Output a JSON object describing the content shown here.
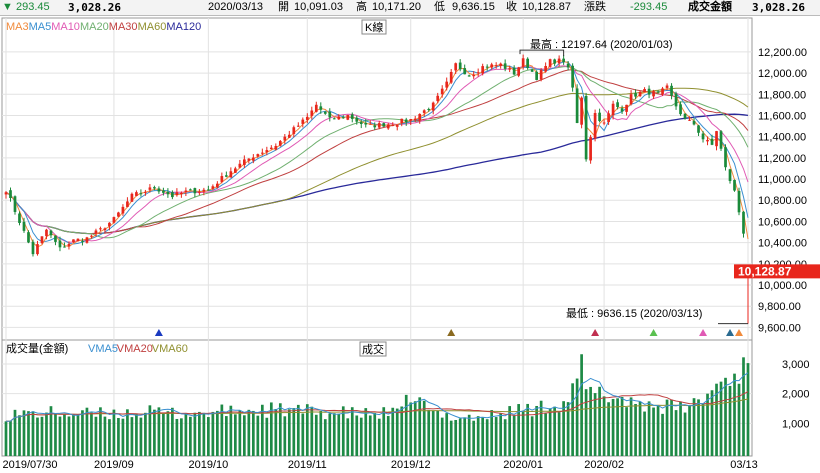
{
  "header": {
    "arrow": "▼",
    "change_left": "293.45",
    "value_left": "3,028.26",
    "date": "2020/03/13",
    "open_label": "開",
    "open_value": "10,091.03",
    "high_label": "高",
    "high_value": "10,171.20",
    "low_label": "低",
    "low_value": "9,636.15",
    "close_label": "收",
    "close_value": "10,128.87",
    "change_label": "漲跌",
    "change_value": "-293.45",
    "amount_label": "成交金額",
    "amount_value": "3,028.26"
  },
  "colors": {
    "up": "#e8261c",
    "down": "#1a8a3a",
    "volume_bar": "#1e8a46",
    "MA3": "#f08a3c",
    "MA5": "#3a8fd0",
    "MA10": "#e05ab4",
    "MA20": "#70b070",
    "MA30": "#c04040",
    "MA60": "#909030",
    "MA120": "#2a2a9a",
    "VMA5": "#3a8fd0",
    "VMA20": "#c04040",
    "VMA60": "#909030"
  },
  "chart_data": [
    {
      "type": "candlestick",
      "title": "K線",
      "legend": [
        "MA3",
        "MA5",
        "MA10",
        "MA20",
        "MA30",
        "MA60",
        "MA120"
      ],
      "ylim": [
        9500,
        12350
      ],
      "y_ticks": [
        9600,
        9800,
        10000,
        10200,
        10400,
        10600,
        10800,
        11000,
        11200,
        11400,
        11600,
        11800,
        12000,
        12200
      ],
      "y_tick_labels": [
        "9,600.00",
        "9,800.00",
        "10,000.00",
        "10,200.00",
        "10,400.00",
        "10,600.00",
        "10,800.00",
        "11,000.00",
        "11,200.00",
        "11,400.00",
        "11,600.00",
        "11,800.00",
        "12,000.00",
        "12,200.00"
      ],
      "x_tick_labels": [
        "2019/07/30",
        "2019/09",
        "2019/10",
        "2019/11",
        "2019/12",
        "2020/01",
        "2020/02",
        "03/13"
      ],
      "x_tick_index": [
        0,
        24,
        45,
        67,
        90,
        115,
        133,
        165
      ],
      "last_close": 10128.87,
      "last_close_label": "10,128.87",
      "annotations": [
        {
          "text": "最高 : 12197.64 (2020/01/03)",
          "value": 12197.64
        },
        {
          "text": "最低 : 9636.15 (2020/03/13)",
          "value": 9636.15
        }
      ],
      "anchors": [
        [
          0,
          10900
        ],
        [
          3,
          10600
        ],
        [
          6,
          10300
        ],
        [
          9,
          10520
        ],
        [
          12,
          10340
        ],
        [
          15,
          10420
        ],
        [
          18,
          10440
        ],
        [
          21,
          10520
        ],
        [
          24,
          10620
        ],
        [
          28,
          10840
        ],
        [
          33,
          10920
        ],
        [
          37,
          10840
        ],
        [
          40,
          10880
        ],
        [
          45,
          10900
        ],
        [
          50,
          11080
        ],
        [
          55,
          11220
        ],
        [
          60,
          11320
        ],
        [
          67,
          11580
        ],
        [
          69,
          11700
        ],
        [
          72,
          11560
        ],
        [
          76,
          11600
        ],
        [
          80,
          11500
        ],
        [
          85,
          11520
        ],
        [
          90,
          11560
        ],
        [
          95,
          11700
        ],
        [
          98,
          11900
        ],
        [
          100,
          12080
        ],
        [
          103,
          11980
        ],
        [
          106,
          12060
        ],
        [
          110,
          12080
        ],
        [
          113,
          12000
        ],
        [
          115,
          12120
        ],
        [
          118,
          11960
        ],
        [
          121,
          12110
        ],
        [
          124,
          12120
        ],
        [
          125,
          12030
        ],
        [
          126,
          11860
        ],
        [
          127,
          11520
        ],
        [
          128,
          11780
        ],
        [
          129,
          11200
        ],
        [
          131,
          11620
        ],
        [
          133,
          11520
        ],
        [
          135,
          11700
        ],
        [
          137,
          11660
        ],
        [
          139,
          11780
        ],
        [
          142,
          11830
        ],
        [
          145,
          11800
        ],
        [
          147,
          11860
        ],
        [
          149,
          11690
        ],
        [
          151,
          11560
        ],
        [
          153,
          11520
        ],
        [
          155,
          11380
        ],
        [
          157,
          11320
        ],
        [
          158,
          11460
        ],
        [
          160,
          11100
        ],
        [
          162,
          10880
        ],
        [
          164,
          10500
        ],
        [
          165,
          10128.87
        ]
      ],
      "markers": [
        {
          "index": 34,
          "color": "#1a3ac0"
        },
        {
          "index": 99,
          "color": "#8a6a20"
        },
        {
          "index": 131,
          "color": "#c03050"
        },
        {
          "index": 144,
          "color": "#5ac050"
        },
        {
          "index": 155,
          "color": "#e05ab4"
        },
        {
          "index": 161,
          "color": "#2a6a90"
        },
        {
          "index": 163,
          "color": "#f08a3c"
        }
      ]
    },
    {
      "type": "bar",
      "title": "成交",
      "legend_label": "成交量(金額)",
      "legend": [
        "VMA5",
        "VMA20",
        "VMA60"
      ],
      "ylim": [
        0,
        3200
      ],
      "y_ticks": [
        1000,
        2000,
        3000
      ],
      "y_tick_labels": [
        "1,000",
        "2,000",
        "3,000"
      ],
      "anchors": [
        [
          0,
          1300
        ],
        [
          10,
          1350
        ],
        [
          20,
          1300
        ],
        [
          30,
          1380
        ],
        [
          40,
          1320
        ],
        [
          50,
          1400
        ],
        [
          60,
          1450
        ],
        [
          70,
          1380
        ],
        [
          80,
          1300
        ],
        [
          88,
          1350
        ],
        [
          90,
          2000
        ],
        [
          95,
          1300
        ],
        [
          100,
          1250
        ],
        [
          105,
          1200
        ],
        [
          110,
          1300
        ],
        [
          115,
          1500
        ],
        [
          118,
          1450
        ],
        [
          121,
          1700
        ],
        [
          124,
          1650
        ],
        [
          127,
          2300
        ],
        [
          128,
          2900
        ],
        [
          129,
          2200
        ],
        [
          130,
          2000
        ],
        [
          135,
          1900
        ],
        [
          140,
          1700
        ],
        [
          145,
          1600
        ],
        [
          150,
          1500
        ],
        [
          155,
          1800
        ],
        [
          158,
          2300
        ],
        [
          160,
          2500
        ],
        [
          163,
          2700
        ],
        [
          164,
          2900
        ],
        [
          165,
          3028.26
        ]
      ],
      "last_value": 3028.26
    }
  ]
}
